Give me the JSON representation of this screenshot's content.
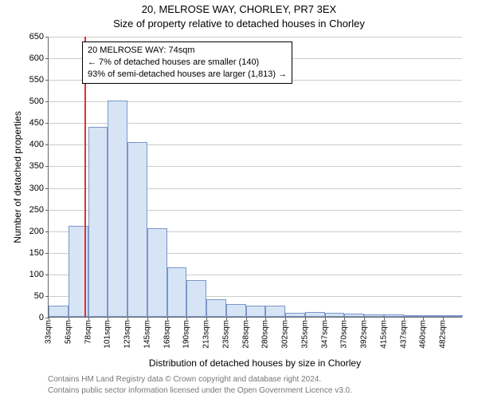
{
  "title_main": "20, MELROSE WAY, CHORLEY, PR7 3EX",
  "title_sub": "Size of property relative to detached houses in Chorley",
  "ylabel": "Number of detached properties",
  "xlabel": "Distribution of detached houses by size in Chorley",
  "footer1": "Contains HM Land Registry data © Crown copyright and database right 2024.",
  "footer2": "Contains public sector information licensed under the Open Government Licence v3.0.",
  "chart": {
    "type": "histogram",
    "ylim": [
      0,
      650
    ],
    "ytick_step": 50,
    "yticks": [
      0,
      50,
      100,
      150,
      200,
      250,
      300,
      350,
      400,
      450,
      500,
      550,
      600,
      650
    ],
    "x_start_sqm": 33,
    "x_bin_sqm": 22.5,
    "x_label_step_bins": 1,
    "xticks_sqm": [
      33,
      56,
      78,
      101,
      123,
      145,
      168,
      190,
      213,
      235,
      258,
      280,
      302,
      325,
      347,
      370,
      392,
      415,
      437,
      460,
      482
    ],
    "bars": [
      25,
      210,
      440,
      500,
      405,
      205,
      115,
      85,
      40,
      30,
      25,
      25,
      10,
      12,
      10,
      8,
      6,
      5,
      4,
      4,
      3
    ],
    "bar_fill": "#d6e4f5",
    "bar_border": "#7a97c9",
    "grid_color": "#cccccc",
    "axis_color": "#666666",
    "background_color": "#ffffff",
    "reference_sqm": 74,
    "reference_color": "#e03030",
    "reference_width": 2,
    "tick_fontsize": 11,
    "label_fontsize": 12,
    "title_fontsize": 13
  },
  "annotation": {
    "line1": "20 MELROSE WAY: 74sqm",
    "line2": "← 7% of detached houses are smaller (140)",
    "line3": "93% of semi-detached houses are larger (1,813) →",
    "border_color": "#000000",
    "background": "#ffffff",
    "fontsize": 11
  }
}
